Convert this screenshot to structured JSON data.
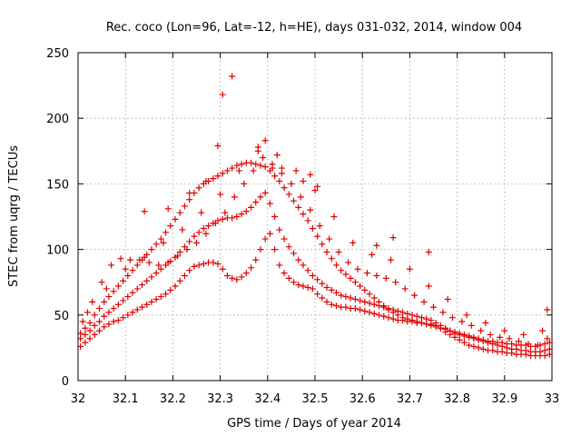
{
  "chart_data": {
    "type": "scatter",
    "title": "Rec. coco (Lon=96, Lat=-12, h=HE), days 031-032, 2014, window 004",
    "xlabel": "GPS time / Days of year 2014",
    "ylabel": "STEC from uqrg / TECUs",
    "xlim": [
      32,
      33
    ],
    "ylim": [
      0,
      250
    ],
    "xticks": [
      "32",
      "32.1",
      "32.2",
      "32.3",
      "32.4",
      "32.5",
      "32.6",
      "32.7",
      "32.8",
      "32.9",
      "33"
    ],
    "yticks": [
      "0",
      "50",
      "100",
      "150",
      "200",
      "250"
    ],
    "grid": true,
    "marker": "+",
    "color": "#e00000",
    "series": [
      {
        "x": [
          32.005,
          32.015,
          32.025,
          32.035,
          32.045,
          32.055,
          32.065,
          32.075,
          32.085,
          32.095,
          32.105,
          32.115,
          32.125,
          32.135,
          32.145,
          32.155,
          32.165,
          32.175,
          32.185,
          32.195,
          32.205,
          32.215,
          32.225,
          32.235,
          32.245,
          32.255,
          32.265,
          32.275,
          32.285,
          32.295,
          32.305,
          32.315,
          32.325,
          32.335,
          32.345,
          32.355,
          32.365,
          32.375,
          32.385,
          32.395,
          32.405,
          32.415,
          32.425,
          32.435,
          32.445,
          32.455,
          32.465,
          32.475,
          32.485,
          32.495,
          32.505,
          32.515,
          32.525,
          32.535,
          32.545,
          32.555,
          32.565,
          32.575,
          32.585,
          32.595,
          32.605,
          32.615,
          32.625,
          32.635,
          32.645,
          32.655,
          32.665,
          32.675,
          32.685,
          32.695,
          32.705,
          32.715,
          32.725,
          32.735,
          32.745,
          32.755,
          32.765,
          32.775,
          32.785,
          32.795,
          32.805,
          32.815,
          32.825,
          32.835,
          32.845,
          32.855,
          32.865,
          32.875,
          32.885,
          32.895,
          32.905,
          32.915,
          32.925,
          32.935,
          32.945,
          32.955,
          32.965,
          32.975,
          32.985,
          32.995
        ],
        "y": [
          26,
          29,
          32,
          35,
          38,
          41,
          43,
          45,
          46,
          48,
          50,
          52,
          54,
          56,
          58,
          60,
          62,
          64,
          66,
          69,
          72,
          76,
          80,
          84,
          87,
          88,
          89,
          90,
          90,
          89,
          85,
          80,
          78,
          77,
          79,
          82,
          86,
          92,
          100,
          108,
          112,
          100,
          88,
          82,
          78,
          75,
          73,
          72,
          71,
          70,
          66,
          63,
          60,
          58,
          57,
          56,
          56,
          55,
          55,
          54,
          53,
          52,
          51,
          50,
          49,
          48,
          47,
          46,
          46,
          45,
          45,
          44,
          44,
          43,
          43,
          42,
          40,
          37,
          35,
          33,
          31,
          29,
          27,
          26,
          25,
          24,
          23,
          23,
          22,
          22,
          21,
          21,
          20,
          20,
          20,
          19,
          19,
          19,
          19,
          20
        ]
      },
      {
        "x": [
          32.005,
          32.015,
          32.025,
          32.035,
          32.045,
          32.055,
          32.065,
          32.075,
          32.085,
          32.095,
          32.105,
          32.115,
          32.125,
          32.135,
          32.145,
          32.155,
          32.165,
          32.175,
          32.185,
          32.195,
          32.205,
          32.215,
          32.225,
          32.235,
          32.245,
          32.255,
          32.265,
          32.275,
          32.285,
          32.295,
          32.305,
          32.315,
          32.325,
          32.335,
          32.345,
          32.355,
          32.365,
          32.375,
          32.385,
          32.395,
          32.405,
          32.415,
          32.425,
          32.435,
          32.445,
          32.455,
          32.465,
          32.475,
          32.485,
          32.495,
          32.505,
          32.515,
          32.525,
          32.535,
          32.545,
          32.555,
          32.565,
          32.575,
          32.585,
          32.595,
          32.605,
          32.615,
          32.625,
          32.635,
          32.645,
          32.655,
          32.665,
          32.675,
          32.685,
          32.695,
          32.705,
          32.715,
          32.725,
          32.735,
          32.745,
          32.755,
          32.765,
          32.775,
          32.785,
          32.795,
          32.805,
          32.815,
          32.825,
          32.835,
          32.845,
          32.855,
          32.865,
          32.875,
          32.885,
          32.895,
          32.905,
          32.915,
          32.925,
          32.935,
          32.945,
          32.955,
          32.965,
          32.975,
          32.985,
          32.995
        ],
        "y": [
          32,
          35,
          38,
          42,
          45,
          49,
          52,
          55,
          58,
          61,
          64,
          67,
          70,
          73,
          76,
          79,
          82,
          85,
          88,
          91,
          94,
          98,
          102,
          106,
          110,
          113,
          116,
          118,
          120,
          122,
          123,
          124,
          124,
          125,
          127,
          129,
          132,
          136,
          140,
          143,
          135,
          125,
          115,
          108,
          102,
          97,
          92,
          88,
          84,
          80,
          77,
          74,
          71,
          69,
          67,
          65,
          64,
          63,
          62,
          61,
          60,
          59,
          58,
          57,
          56,
          55,
          54,
          53,
          52,
          51,
          50,
          49,
          48,
          47,
          46,
          44,
          42,
          40,
          38,
          36,
          35,
          34,
          33,
          32,
          31,
          30,
          29,
          28,
          27,
          26,
          25,
          24,
          24,
          23,
          23,
          22,
          22,
          22,
          23,
          24
        ]
      },
      {
        "x": [
          32.005,
          32.015,
          32.025,
          32.035,
          32.045,
          32.055,
          32.065,
          32.075,
          32.085,
          32.095,
          32.105,
          32.115,
          32.125,
          32.135,
          32.145,
          32.155,
          32.165,
          32.175,
          32.185,
          32.195,
          32.205,
          32.215,
          32.225,
          32.235,
          32.245,
          32.255,
          32.265,
          32.275,
          32.285,
          32.295,
          32.305,
          32.315,
          32.325,
          32.335,
          32.345,
          32.355,
          32.365,
          32.375,
          32.385,
          32.395,
          32.405,
          32.415,
          32.425,
          32.435,
          32.445,
          32.455,
          32.465,
          32.475,
          32.485,
          32.495,
          32.505,
          32.515,
          32.525,
          32.535,
          32.545,
          32.555,
          32.565,
          32.575,
          32.585,
          32.595,
          32.605,
          32.615,
          32.625,
          32.635,
          32.645,
          32.655,
          32.665,
          32.675,
          32.685,
          32.695,
          32.705,
          32.715,
          32.725,
          32.735,
          32.745,
          32.755,
          32.765,
          32.775,
          32.785,
          32.795,
          32.805,
          32.815,
          32.825,
          32.835,
          32.845,
          32.855,
          32.865,
          32.875,
          32.885,
          32.895,
          32.905,
          32.915,
          32.925,
          32.935,
          32.945,
          32.955,
          32.965,
          32.975,
          32.985,
          32.995
        ],
        "y": [
          36,
          40,
          44,
          50,
          55,
          60,
          64,
          68,
          72,
          76,
          80,
          84,
          88,
          92,
          96,
          100,
          104,
          108,
          113,
          118,
          123,
          128,
          133,
          138,
          143,
          147,
          150,
          152,
          154,
          156,
          158,
          160,
          162,
          164,
          165,
          166,
          166,
          165,
          164,
          163,
          160,
          156,
          152,
          147,
          142,
          137,
          132,
          127,
          122,
          116,
          110,
          104,
          98,
          93,
          88,
          84,
          81,
          78,
          75,
          72,
          69,
          66,
          63,
          60,
          57,
          54,
          52,
          50,
          48,
          47,
          46,
          45,
          44,
          43,
          42,
          41,
          40,
          39,
          38,
          37,
          36,
          35,
          34,
          33,
          32,
          31,
          30,
          30,
          29,
          29,
          28,
          28,
          27,
          27,
          27,
          26,
          26,
          27,
          28,
          29
        ]
      },
      {
        "x": [
          32.01,
          32.03,
          32.05,
          32.07,
          32.09,
          32.11,
          32.13,
          32.15,
          32.17,
          32.19,
          32.21,
          32.23,
          32.25,
          32.27,
          32.29,
          32.31,
          32.33,
          32.35,
          32.37,
          32.39,
          32.41,
          32.43,
          32.45,
          32.47,
          32.49,
          32.51,
          32.53,
          32.55,
          32.57,
          32.59,
          32.61,
          32.63,
          32.65,
          32.67,
          32.69,
          32.71,
          32.73,
          32.75,
          32.77,
          32.79,
          32.81,
          32.83,
          32.85,
          32.87,
          32.89,
          32.91,
          32.93,
          32.95,
          32.97,
          32.99
        ],
        "y": [
          45,
          60,
          75,
          88,
          93,
          92,
          92,
          90,
          88,
          90,
          95,
          100,
          105,
          112,
          120,
          128,
          140,
          150,
          160,
          170,
          165,
          158,
          150,
          140,
          130,
          118,
          108,
          98,
          90,
          85,
          82,
          80,
          78,
          75,
          70,
          65,
          60,
          56,
          52,
          48,
          45,
          42,
          38,
          35,
          33,
          32,
          30,
          28,
          27,
          32
        ]
      },
      {
        "x": [
          32.02,
          32.06,
          32.1,
          32.14,
          32.18,
          32.22,
          32.26,
          32.3,
          32.34,
          32.38,
          32.42,
          32.46,
          32.5,
          32.54,
          32.58,
          32.62,
          32.66,
          32.7,
          32.74,
          32.78,
          32.82,
          32.86,
          32.9,
          32.94,
          32.98
        ],
        "y": [
          52,
          70,
          85,
          94,
          105,
          115,
          128,
          142,
          160,
          175,
          172,
          160,
          145,
          125,
          105,
          96,
          92,
          85,
          72,
          62,
          50,
          44,
          38,
          35,
          38
        ]
      },
      {
        "x": [
          32.14,
          32.19,
          32.235,
          32.27,
          32.295,
          32.305,
          32.325,
          32.38,
          32.395,
          32.41,
          32.43,
          32.475,
          32.49,
          32.505,
          32.63,
          32.665,
          32.74,
          32.99
        ],
        "y": [
          129,
          131,
          143,
          152,
          179,
          218,
          232,
          178,
          183,
          162,
          162,
          152,
          157,
          148,
          103,
          109,
          98,
          54
        ]
      }
    ]
  }
}
